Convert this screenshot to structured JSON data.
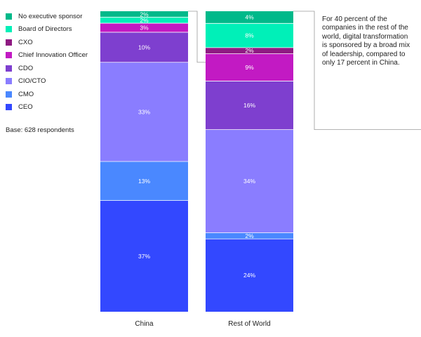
{
  "chart_data": {
    "type": "stacked-bar",
    "categories": [
      "China",
      "Rest of World"
    ],
    "series": [
      {
        "name": "CEO",
        "color": "#3348ff",
        "values": [
          37,
          24
        ],
        "labels": [
          "37%",
          "24%"
        ]
      },
      {
        "name": "CMO",
        "color": "#4a88ff",
        "values": [
          13,
          2
        ],
        "labels": [
          "13%",
          "2%"
        ]
      },
      {
        "name": "CIO/CTO",
        "color": "#8a7dff",
        "values": [
          33,
          34
        ],
        "labels": [
          "33%",
          "34%"
        ]
      },
      {
        "name": "CDO",
        "color": "#7e3fcf",
        "values": [
          10,
          16
        ],
        "labels": [
          "10%",
          "16%"
        ]
      },
      {
        "name": "Chief Innovation Officer",
        "color": "#c21ac3",
        "values": [
          3,
          9
        ],
        "labels": [
          "3%",
          "9%"
        ]
      },
      {
        "name": "CXO",
        "color": "#8f1a82",
        "values": [
          0,
          2
        ],
        "labels": [
          "",
          "2%"
        ]
      },
      {
        "name": "Board of Directors",
        "color": "#00f0b8",
        "values": [
          2,
          8
        ],
        "labels": [
          "2%",
          "8%"
        ]
      },
      {
        "name": "No executive sponsor",
        "color": "#00b98a",
        "values": [
          2,
          4
        ],
        "labels": [
          "2%",
          "4%"
        ]
      }
    ],
    "legend_order": [
      "No executive sponsor",
      "Board of Directors",
      "CXO",
      "Chief Innovation Officer",
      "CDO",
      "CIO/CTO",
      "CMO",
      "CEO"
    ],
    "legend_position": "left",
    "grid": false
  },
  "base_note": "Base: 628 respondents",
  "annotation": "For 40 percent of the companies in the rest of the world, digital transformation is sponsored by a broad mix of leadership, compared to only 17 percent in China.",
  "callout_groups": [
    "CDO",
    "Chief Innovation Officer",
    "CXO",
    "Board of Directors",
    "No executive sponsor"
  ]
}
